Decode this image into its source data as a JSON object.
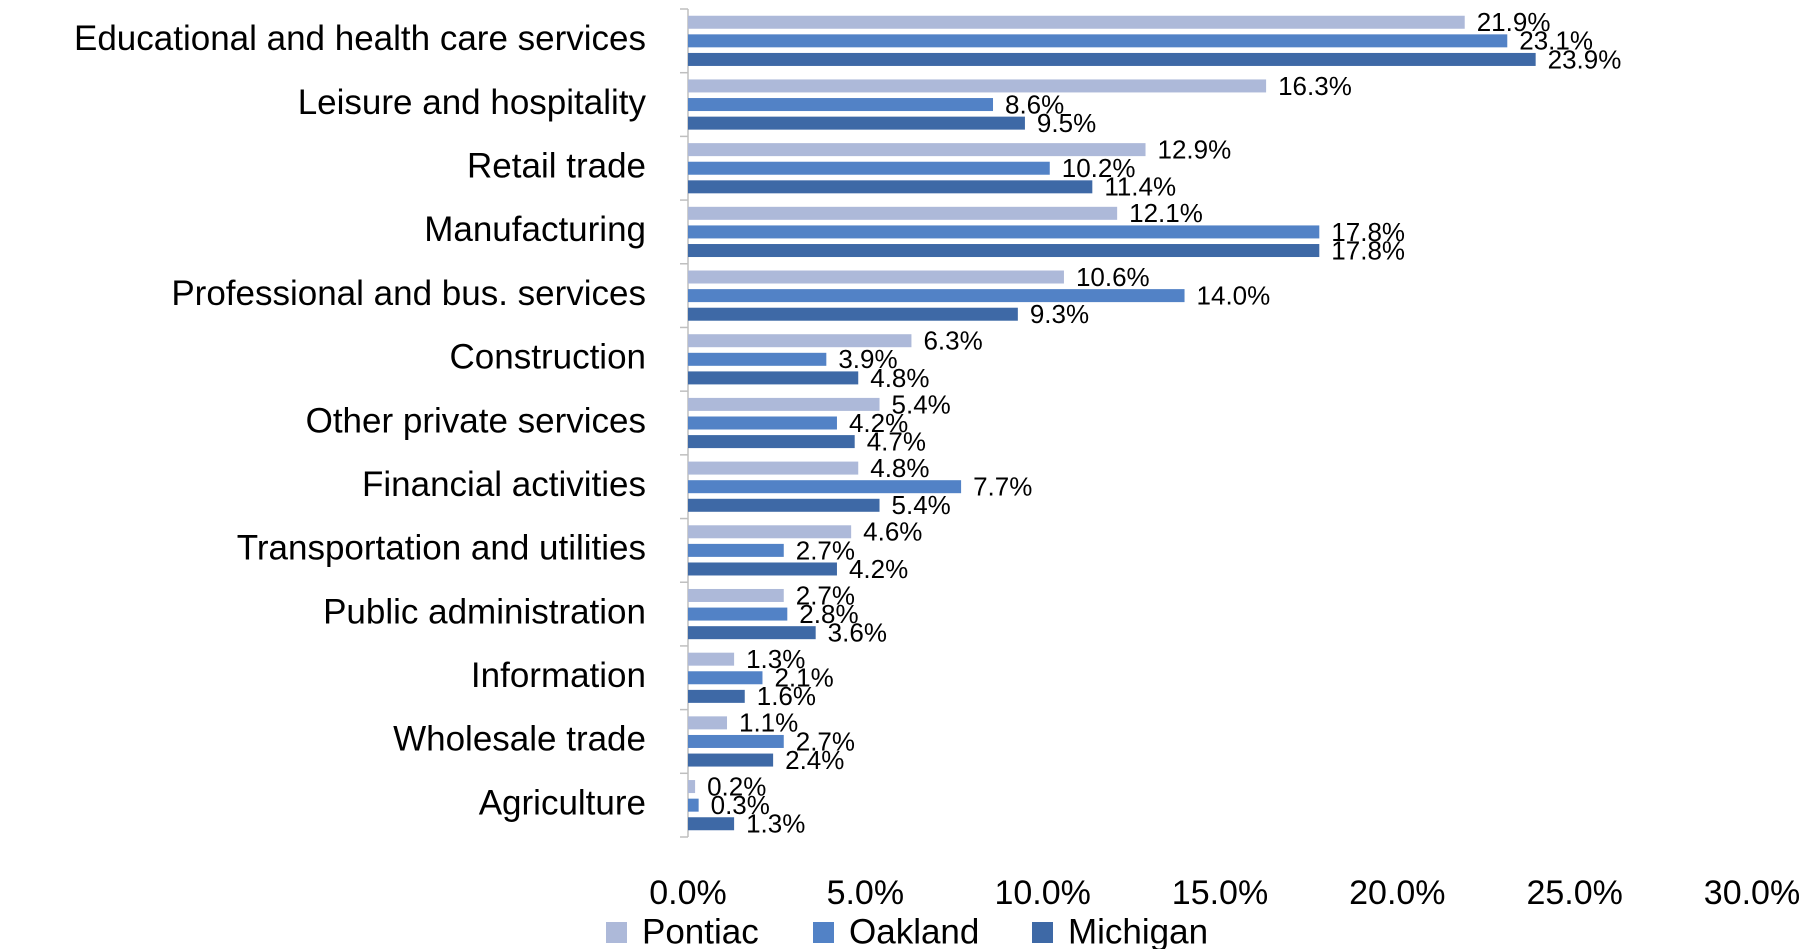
{
  "chart_data": {
    "type": "barh",
    "categories": [
      "Educational and health care services",
      "Leisure and hospitality",
      "Retail trade",
      "Manufacturing",
      "Professional and bus. services",
      "Construction",
      "Other private services",
      "Financial activities",
      "Transportation and utilities",
      "Public administration",
      "Information",
      "Wholesale trade",
      "Agriculture"
    ],
    "series": [
      {
        "name": "Pontiac",
        "color": "#adb9d9",
        "values": [
          21.9,
          16.3,
          12.9,
          12.1,
          10.6,
          6.3,
          5.4,
          4.8,
          4.6,
          2.7,
          1.3,
          1.1,
          0.2
        ],
        "value_labels": [
          "21.9%",
          "16.3%",
          "12.9%",
          "12.1%",
          "10.6%",
          "6.3%",
          "5.4%",
          "4.8%",
          "4.6%",
          "2.7%",
          "1.3%",
          "1.1%",
          "0.2%"
        ]
      },
      {
        "name": "Oakland",
        "color": "#5282c6",
        "values": [
          23.1,
          8.6,
          10.2,
          17.8,
          14.0,
          3.9,
          4.2,
          7.7,
          2.7,
          2.8,
          2.1,
          2.7,
          0.3
        ],
        "value_labels": [
          "23.1%",
          "8.6%",
          "10.2%",
          "17.8%",
          "14.0%",
          "3.9%",
          "4.2%",
          "7.7%",
          "2.7%",
          "2.8%",
          "2.1%",
          "2.7%",
          "0.3%"
        ]
      },
      {
        "name": "Michigan",
        "color": "#3e69a6",
        "values": [
          23.9,
          9.5,
          11.4,
          17.8,
          9.3,
          4.8,
          4.7,
          5.4,
          4.2,
          3.6,
          1.6,
          2.4,
          1.3
        ],
        "value_labels": [
          "23.9%",
          "9.5%",
          "11.4%",
          "17.8%",
          "9.3%",
          "4.8%",
          "4.7%",
          "5.4%",
          "4.2%",
          "3.6%",
          "1.6%",
          "2.4%",
          "1.3%"
        ]
      }
    ],
    "xlim": [
      0,
      30
    ],
    "xticks": [
      {
        "value": 0,
        "label": "0.0%"
      },
      {
        "value": 5,
        "label": "5.0%"
      },
      {
        "value": 10,
        "label": "10.0%"
      },
      {
        "value": 15,
        "label": "15.0%"
      },
      {
        "value": 20,
        "label": "20.0%"
      },
      {
        "value": 25,
        "label": "25.0%"
      },
      {
        "value": 30,
        "label": "30.0%"
      }
    ],
    "grid": false,
    "legend": "bottom"
  }
}
